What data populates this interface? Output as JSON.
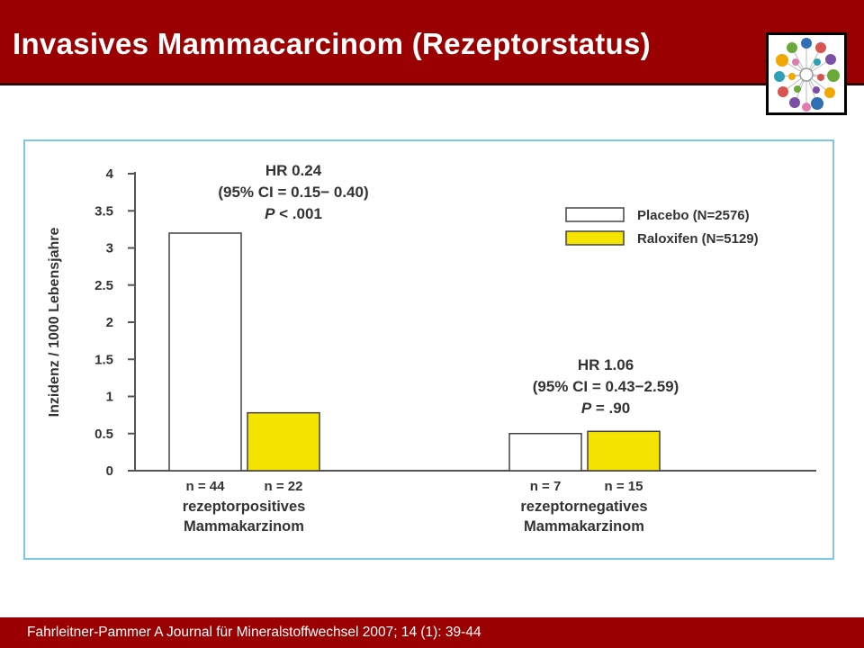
{
  "slide": {
    "title": "Invasives Mammacarcinom (Rezeptorstatus)",
    "citation": "Fahrleitner-Pammer A Journal für Mineralstoffwechsel 2007; 14 (1): 39-44"
  },
  "colors": {
    "header_bg": "#9b0000",
    "frame_border": "#7fc6e8",
    "placebo_fill": "#ffffff",
    "raloxifen_fill": "#f5e400"
  },
  "chart_data": {
    "type": "bar",
    "ylabel": "Inzidenz / 1000 Lebensjahre",
    "ylim": [
      0,
      4
    ],
    "yticks": [
      "0",
      "0.5",
      "1",
      "1.5",
      "2",
      "2.5",
      "3",
      "3.5",
      "4"
    ],
    "grid": false,
    "legend_position": "top-right",
    "categories": [
      {
        "label_line1": "rezeptorpositives",
        "label_line2": "Mammakarzinom"
      },
      {
        "label_line1": "rezeptornegatives",
        "label_line2": "Mammakarzinom"
      }
    ],
    "series": [
      {
        "name": "Placebo (N=2576)",
        "color": "#ffffff",
        "values": [
          3.2,
          0.5
        ],
        "n_labels": [
          "n = 44",
          "n = 7"
        ]
      },
      {
        "name": "Raloxifen (N=5129)",
        "color": "#f5e400",
        "values": [
          0.78,
          0.53
        ],
        "n_labels": [
          "n = 22",
          "n = 15"
        ]
      }
    ],
    "annotations": [
      {
        "hr": "HR 0.24",
        "ci": "(95% CI = 0.15− 0.40)",
        "p_value": "< .001"
      },
      {
        "hr": "HR 1.06",
        "ci": "(95% CI = 0.43−2.59)",
        "p_value": "= .90"
      }
    ],
    "p_letter": "P"
  }
}
